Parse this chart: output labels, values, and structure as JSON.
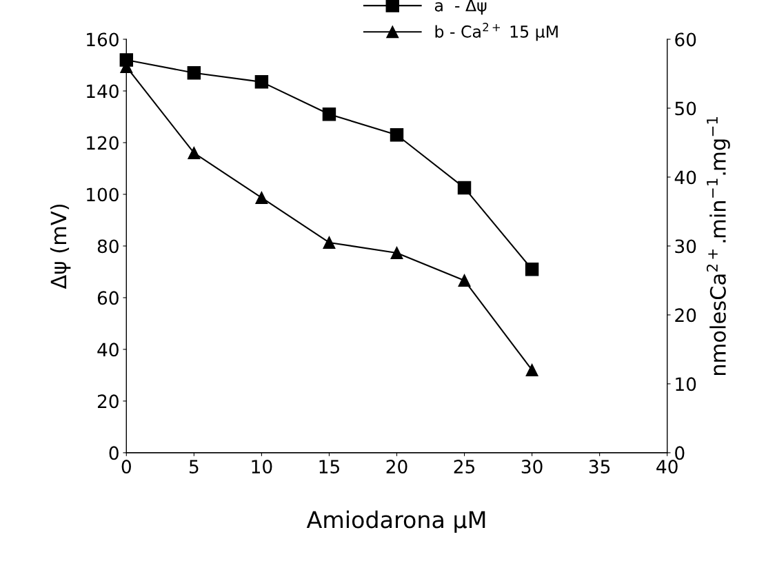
{
  "chart_data": {
    "type": "line",
    "xlabel": "Amiodarona μM",
    "ylabel": "Δψ (mV)",
    "y2label": "nmolesCa$^{2+}$.min$^{−1}$.mg$^{−1}$",
    "x": [
      0,
      5,
      10,
      15,
      20,
      25,
      30
    ],
    "series": [
      {
        "name": "a  - Δψ",
        "color": "#000000",
        "marker": "square",
        "values": [
          152,
          147,
          143.5,
          131,
          123,
          102.5,
          71
        ]
      },
      {
        "name": "b - Ca$^{2+}$ 15 μM",
        "color": "#000000",
        "marker": "triangle",
        "axis": "y2",
        "values": [
          56,
          43.5,
          37,
          30.5,
          29,
          25,
          12
        ]
      }
    ],
    "xlim": [
      0,
      40
    ],
    "xticks": [
      0,
      5,
      10,
      15,
      20,
      25,
      30,
      35,
      40
    ],
    "ylim": [
      0,
      160
    ],
    "yticks": [
      0,
      20,
      40,
      60,
      80,
      100,
      120,
      140,
      160
    ],
    "y2lim": [
      0,
      60
    ],
    "y2ticks": [
      0,
      10,
      20,
      30,
      40,
      50,
      60
    ],
    "grid": false,
    "legend": "top",
    "line_style": "solid"
  }
}
